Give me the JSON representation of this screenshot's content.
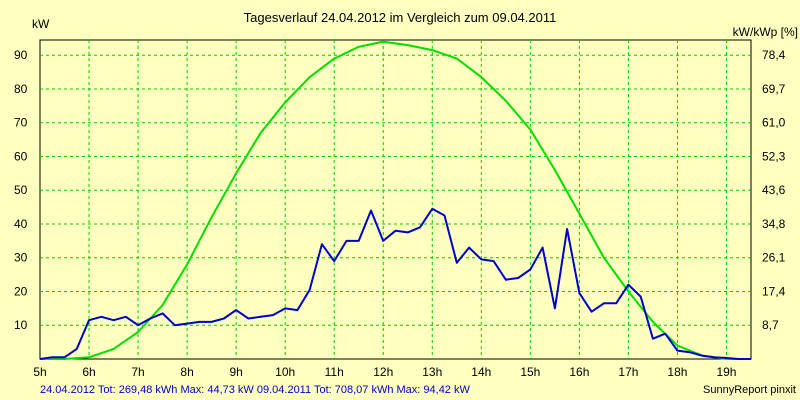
{
  "chart_data": {
    "type": "line",
    "title": "Tagesverlauf 24.04.2012 im Vergleich zum 09.04.2011",
    "ylabel_left": "kW",
    "ylabel_right": "kW/kWp [%]",
    "xlim": [
      5,
      19.5
    ],
    "ylim": [
      0,
      94.5
    ],
    "x_ticks": [
      5,
      6,
      7,
      8,
      9,
      10,
      11,
      12,
      13,
      14,
      15,
      16,
      17,
      18,
      19
    ],
    "x_tick_labels": [
      "5h",
      "6h",
      "7h",
      "8h",
      "9h",
      "10h",
      "11h",
      "12h",
      "13h",
      "14h",
      "15h",
      "16h",
      "17h",
      "18h",
      "19h"
    ],
    "y_ticks": [
      10,
      20,
      30,
      40,
      50,
      60,
      70,
      80,
      90
    ],
    "y_tick_labels": [
      "10",
      "20",
      "30",
      "40",
      "50",
      "60",
      "70",
      "80",
      "90"
    ],
    "y_right_ticks": [
      10,
      20,
      30,
      40,
      50,
      60,
      70,
      80,
      90
    ],
    "y_right_tick_labels": [
      "8,7",
      "17,4",
      "26,1",
      "34,8",
      "43,6",
      "52,3",
      "61,0",
      "69,7",
      "78,4"
    ],
    "grid": true,
    "series": [
      {
        "name": "24.04.2012",
        "color": "#0000cc",
        "x": [
          5.0,
          5.25,
          5.5,
          5.75,
          6.0,
          6.25,
          6.5,
          6.75,
          7.0,
          7.25,
          7.5,
          7.75,
          8.0,
          8.25,
          8.5,
          8.75,
          9.0,
          9.25,
          9.5,
          9.75,
          10.0,
          10.25,
          10.5,
          10.75,
          11.0,
          11.25,
          11.5,
          11.75,
          12.0,
          12.25,
          12.5,
          12.75,
          13.0,
          13.25,
          13.5,
          13.75,
          14.0,
          14.25,
          14.5,
          14.75,
          15.0,
          15.25,
          15.5,
          15.75,
          16.0,
          16.25,
          16.5,
          16.75,
          17.0,
          17.25,
          17.5,
          17.75,
          18.0,
          18.25,
          18.5,
          18.75,
          19.0,
          19.25,
          19.5
        ],
        "y": [
          0.0,
          0.5,
          0.5,
          3.0,
          11.5,
          12.5,
          11.5,
          12.5,
          10.0,
          12.0,
          13.5,
          10.0,
          10.5,
          11.0,
          11.0,
          12.0,
          14.5,
          12.0,
          12.5,
          13.0,
          15.0,
          14.5,
          20.5,
          34.0,
          29.0,
          35.0,
          35.0,
          44.0,
          35.0,
          38.0,
          37.5,
          39.0,
          44.5,
          42.5,
          28.5,
          33.0,
          29.5,
          29.0,
          23.5,
          24.0,
          26.5,
          33.0,
          15.0,
          38.5,
          19.5,
          14.0,
          16.5,
          16.5,
          22.0,
          18.5,
          6.0,
          7.5,
          2.5,
          2.0,
          1.0,
          0.5,
          0.3,
          0.0,
          0.0
        ]
      },
      {
        "name": "09.04.2011",
        "color": "#00dd00",
        "x": [
          5.0,
          5.5,
          6.0,
          6.5,
          7.0,
          7.5,
          8.0,
          8.5,
          9.0,
          9.5,
          10.0,
          10.5,
          11.0,
          11.5,
          12.0,
          12.5,
          13.0,
          13.5,
          14.0,
          14.5,
          15.0,
          15.5,
          16.0,
          16.5,
          17.0,
          17.5,
          18.0,
          18.5,
          19.0,
          19.5
        ],
        "y": [
          0.0,
          0.0,
          0.5,
          3.0,
          8.0,
          16.0,
          28.0,
          42.0,
          55.0,
          67.0,
          76.0,
          83.5,
          89.0,
          92.5,
          94.0,
          93.0,
          91.5,
          89.0,
          83.5,
          76.5,
          68.0,
          56.0,
          43.0,
          30.0,
          20.0,
          11.0,
          4.0,
          1.0,
          0.0,
          0.0
        ]
      }
    ],
    "footer": {
      "left": "24.04.2012 Tot: 269,48 kWh Max: 44,73 kW 09.04.2011 Tot: 708,07 kWh Max: 94,42 kW",
      "right": "SunnyReport pinxit"
    }
  }
}
